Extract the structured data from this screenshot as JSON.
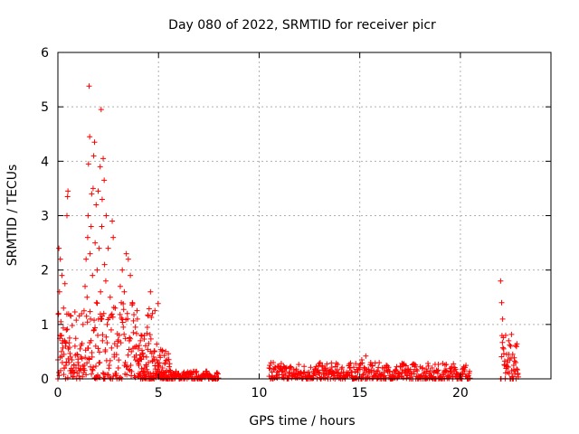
{
  "chart_data": {
    "type": "scatter",
    "title": "Day 080 of 2022, SRMTID for receiver picr",
    "xlabel": "GPS time / hours",
    "ylabel": "SRMTID / TECUs",
    "xlim": [
      0,
      24.5
    ],
    "ylim": [
      0,
      6
    ],
    "xticks": [
      0,
      5,
      10,
      15,
      20
    ],
    "yticks": [
      0,
      1,
      2,
      3,
      4,
      5,
      6
    ],
    "grid": true,
    "marker": "plus",
    "series": [
      {
        "name": "SRMTID",
        "color": "#ff0000",
        "points": [
          [
            0.0,
            0.35
          ],
          [
            0.03,
            1.2
          ],
          [
            0.05,
            2.4
          ],
          [
            0.08,
            1.6
          ],
          [
            0.1,
            0.8
          ],
          [
            0.12,
            2.2
          ],
          [
            0.15,
            1.05
          ],
          [
            0.18,
            0.5
          ],
          [
            0.2,
            1.9
          ],
          [
            0.22,
            0.3
          ],
          [
            0.25,
            0.7
          ],
          [
            0.28,
            1.3
          ],
          [
            0.3,
            0.45
          ],
          [
            0.32,
            0.2
          ],
          [
            0.35,
            1.75
          ],
          [
            0.38,
            0.6
          ],
          [
            0.4,
            0.25
          ],
          [
            0.42,
            0.9
          ],
          [
            0.45,
            3.0
          ],
          [
            0.48,
            3.35
          ],
          [
            0.5,
            3.45
          ],
          [
            0.52,
            0.55
          ],
          [
            0.55,
            0.3
          ],
          [
            0.58,
            0.75
          ],
          [
            0.6,
            0.15
          ],
          [
            0.63,
            0.4
          ],
          [
            0.65,
            0.1
          ],
          [
            0.7,
            0.35
          ],
          [
            0.75,
            0.05
          ],
          [
            0.8,
            0.25
          ],
          [
            0.85,
            0.6
          ],
          [
            0.9,
            0.2
          ],
          [
            0.95,
            0.45
          ],
          [
            1.0,
            0.3
          ],
          [
            1.05,
            0.15
          ],
          [
            1.1,
            0.55
          ],
          [
            1.15,
            0.4
          ],
          [
            1.2,
            0.65
          ],
          [
            1.25,
            1.0
          ],
          [
            1.3,
            1.25
          ],
          [
            1.35,
            1.7
          ],
          [
            1.4,
            2.2
          ],
          [
            1.45,
            1.5
          ],
          [
            1.48,
            2.6
          ],
          [
            1.5,
            3.0
          ],
          [
            1.52,
            3.95
          ],
          [
            1.55,
            5.38
          ],
          [
            1.58,
            4.45
          ],
          [
            1.6,
            2.3
          ],
          [
            1.62,
            1.1
          ],
          [
            1.65,
            2.8
          ],
          [
            1.68,
            3.4
          ],
          [
            1.7,
            0.4
          ],
          [
            1.72,
            1.9
          ],
          [
            1.75,
            3.5
          ],
          [
            1.78,
            4.1
          ],
          [
            1.8,
            0.9
          ],
          [
            1.82,
            4.35
          ],
          [
            1.85,
            2.5
          ],
          [
            1.88,
            0.6
          ],
          [
            1.9,
            3.2
          ],
          [
            1.92,
            1.4
          ],
          [
            1.95,
            2.0
          ],
          [
            1.98,
            0.8
          ],
          [
            2.0,
            3.45
          ],
          [
            2.02,
            1.1
          ],
          [
            2.05,
            2.4
          ],
          [
            2.08,
            0.3
          ],
          [
            2.1,
            3.9
          ],
          [
            2.12,
            1.6
          ],
          [
            2.15,
            4.95
          ],
          [
            2.18,
            2.8
          ],
          [
            2.2,
            3.3
          ],
          [
            2.22,
            0.7
          ],
          [
            2.25,
            4.05
          ],
          [
            2.28,
            1.2
          ],
          [
            2.3,
            3.65
          ],
          [
            2.32,
            2.1
          ],
          [
            2.35,
            0.5
          ],
          [
            2.38,
            1.8
          ],
          [
            2.4,
            3.0
          ],
          [
            2.45,
            1.0
          ],
          [
            2.5,
            2.4
          ],
          [
            2.55,
            0.25
          ],
          [
            2.6,
            1.5
          ],
          [
            2.65,
            0.9
          ],
          [
            2.7,
            2.9
          ],
          [
            2.75,
            2.6
          ],
          [
            2.8,
            0.4
          ],
          [
            2.85,
            1.3
          ],
          [
            2.9,
            0.1
          ],
          [
            2.95,
            0.6
          ],
          [
            3.0,
            0.2
          ],
          [
            3.05,
            0.8
          ],
          [
            3.1,
            1.7
          ],
          [
            3.15,
            1.4
          ],
          [
            3.2,
            2.0
          ],
          [
            3.25,
            0.95
          ],
          [
            3.3,
            1.6
          ],
          [
            3.35,
            0.3
          ],
          [
            3.4,
            2.3
          ],
          [
            3.45,
            1.2
          ],
          [
            3.5,
            2.2
          ],
          [
            3.55,
            0.7
          ],
          [
            3.6,
            1.9
          ],
          [
            3.65,
            0.5
          ],
          [
            3.7,
            1.4
          ],
          [
            3.75,
            0.85
          ],
          [
            3.8,
            0.4
          ],
          [
            3.85,
            0.95
          ],
          [
            3.9,
            0.6
          ],
          [
            3.95,
            1.1
          ],
          [
            4.0,
            0.55
          ],
          [
            4.1,
            0.7
          ],
          [
            4.2,
            0.45
          ],
          [
            4.3,
            0.8
          ],
          [
            4.4,
            0.4
          ],
          [
            4.5,
            0.3
          ],
          [
            4.6,
            1.6
          ],
          [
            4.7,
            1.2
          ],
          [
            4.8,
            0.5
          ],
          [
            4.9,
            0.35
          ],
          [
            5.0,
            0.25
          ],
          [
            5.2,
            0.2
          ],
          [
            5.4,
            0.15
          ],
          [
            5.6,
            0.12
          ],
          [
            5.8,
            0.08
          ],
          [
            6.0,
            0.1
          ],
          [
            6.3,
            0.06
          ],
          [
            6.6,
            0.08
          ],
          [
            6.9,
            0.05
          ],
          [
            7.2,
            0.07
          ],
          [
            7.5,
            0.05
          ],
          [
            7.8,
            0.04
          ],
          [
            10.5,
            0.2
          ],
          [
            10.7,
            0.3
          ],
          [
            10.9,
            0.12
          ],
          [
            11.2,
            0.08
          ],
          [
            11.5,
            0.05
          ],
          [
            11.8,
            0.07
          ],
          [
            12.1,
            0.09
          ],
          [
            12.4,
            0.11
          ],
          [
            12.7,
            0.14
          ],
          [
            13.0,
            0.12
          ],
          [
            13.3,
            0.1
          ],
          [
            13.6,
            0.08
          ],
          [
            13.9,
            0.06
          ],
          [
            14.2,
            0.12
          ],
          [
            14.5,
            0.2
          ],
          [
            14.8,
            0.28
          ],
          [
            15.1,
            0.35
          ],
          [
            15.3,
            0.42
          ],
          [
            15.6,
            0.25
          ],
          [
            15.9,
            0.15
          ],
          [
            16.2,
            0.2
          ],
          [
            16.5,
            0.14
          ],
          [
            16.8,
            0.1
          ],
          [
            17.1,
            0.12
          ],
          [
            17.4,
            0.18
          ],
          [
            17.7,
            0.27
          ],
          [
            18.0,
            0.22
          ],
          [
            18.3,
            0.18
          ],
          [
            18.6,
            0.2
          ],
          [
            18.9,
            0.16
          ],
          [
            19.2,
            0.15
          ],
          [
            19.5,
            0.12
          ],
          [
            19.8,
            0.1
          ],
          [
            20.1,
            0.08
          ],
          [
            20.4,
            0.06
          ],
          [
            22.0,
            1.8
          ],
          [
            22.05,
            1.4
          ],
          [
            22.1,
            1.1
          ],
          [
            22.15,
            0.55
          ],
          [
            22.2,
            0.25
          ],
          [
            22.25,
            0.8
          ],
          [
            22.3,
            0.45
          ],
          [
            22.35,
            0.12
          ],
          [
            22.4,
            0.7
          ],
          [
            22.45,
            0.35
          ],
          [
            22.5,
            0.6
          ],
          [
            22.55,
            0.15
          ],
          [
            22.6,
            0.45
          ],
          [
            22.65,
            0.25
          ],
          [
            22.7,
            0.1
          ],
          [
            22.75,
            0.3
          ],
          [
            22.8,
            0.18
          ],
          [
            22.85,
            0.08
          ]
        ],
        "continuous": [
          {
            "from": 0.0,
            "to": 5.0,
            "min": 0.0,
            "max": 1.4
          },
          {
            "from": 4.0,
            "to": 5.6,
            "min": 0.0,
            "max": 0.55
          },
          {
            "from": 5.0,
            "to": 8.0,
            "min": 0.0,
            "max": 0.15
          },
          {
            "from": 10.5,
            "to": 20.5,
            "min": 0.0,
            "max": 0.3
          },
          {
            "from": 22.0,
            "to": 22.9,
            "min": 0.0,
            "max": 0.85
          }
        ]
      }
    ]
  }
}
